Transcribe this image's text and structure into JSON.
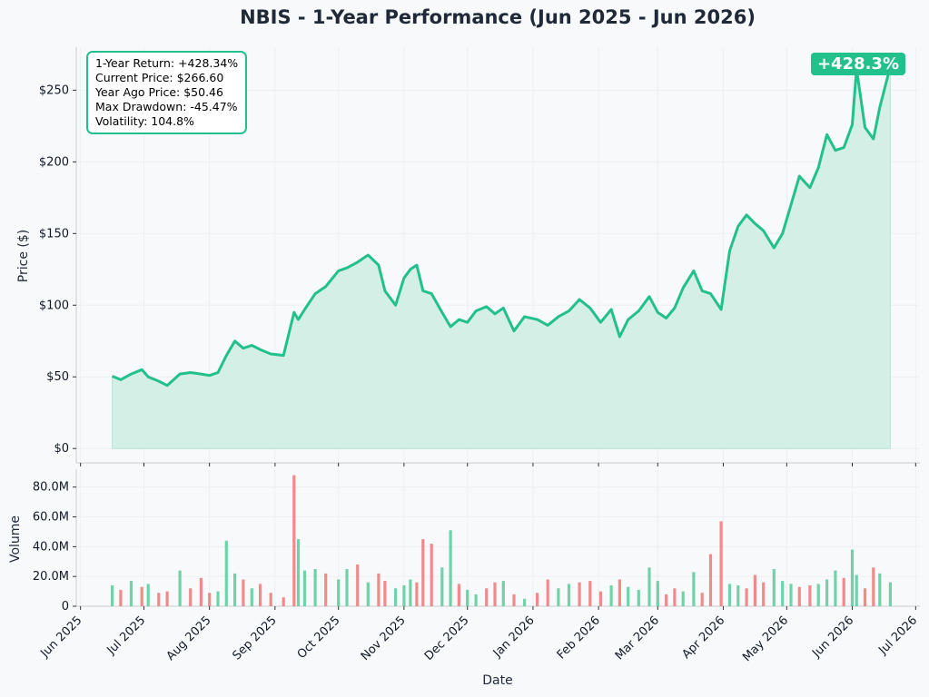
{
  "colors": {
    "accent": "#22c08a",
    "fill": "#d4efe5",
    "volume_up": "#5fcea0",
    "volume_down": "#ef7e7e",
    "grid": "#eceff3",
    "axis": "#c9ccd1"
  },
  "stats": {
    "return_line": "1-Year Return: +428.34%",
    "current_line": "Current Price: $266.60",
    "yearago_line": "Year Ago Price: $50.46",
    "drawdown_line": "Max Drawdown: -45.47%",
    "volatility_line": "Volatility: 104.8%"
  },
  "badge": "+428.3%",
  "chart_data": [
    {
      "type": "area",
      "title": "NBIS - 1-Year Performance (Jun 2025 - Jun 2026)",
      "xlabel": "",
      "ylabel": "Price ($)",
      "xlim": [
        "2025-05-30",
        "2026-07-03"
      ],
      "ylim": [
        -10,
        280
      ],
      "yticks": [
        0,
        50,
        100,
        150,
        200,
        250
      ],
      "ytick_labels": [
        "$0",
        "$50",
        "$100",
        "$150",
        "$200",
        "$250"
      ],
      "grid": true,
      "series": [
        {
          "x": [
            "2025-06-16",
            "2025-06-20",
            "2025-06-25",
            "2025-06-30",
            "2025-07-03",
            "2025-07-08",
            "2025-07-12",
            "2025-07-18",
            "2025-07-23",
            "2025-07-28",
            "2025-08-01",
            "2025-08-05",
            "2025-08-09",
            "2025-08-13",
            "2025-08-17",
            "2025-08-21",
            "2025-08-25",
            "2025-08-30",
            "2025-09-05",
            "2025-09-10",
            "2025-09-12",
            "2025-09-15",
            "2025-09-20",
            "2025-09-25",
            "2025-10-01",
            "2025-10-05",
            "2025-10-10",
            "2025-10-15",
            "2025-10-20",
            "2025-10-23",
            "2025-10-28",
            "2025-11-01",
            "2025-11-04",
            "2025-11-07",
            "2025-11-10",
            "2025-11-14",
            "2025-11-19",
            "2025-11-23",
            "2025-11-27",
            "2025-12-01",
            "2025-12-05",
            "2025-12-10",
            "2025-12-14",
            "2025-12-18",
            "2025-12-23",
            "2025-12-28",
            "2026-01-03",
            "2026-01-08",
            "2026-01-13",
            "2026-01-18",
            "2026-01-23",
            "2026-01-28",
            "2026-02-02",
            "2026-02-07",
            "2026-02-11",
            "2026-02-15",
            "2026-02-20",
            "2026-02-25",
            "2026-03-01",
            "2026-03-05",
            "2026-03-09",
            "2026-03-13",
            "2026-03-18",
            "2026-03-22",
            "2026-03-26",
            "2026-03-31",
            "2026-04-04",
            "2026-04-08",
            "2026-04-12",
            "2026-04-16",
            "2026-04-20",
            "2026-04-25",
            "2026-04-29",
            "2026-05-03",
            "2026-05-07",
            "2026-05-12",
            "2026-05-16",
            "2026-05-20",
            "2026-05-24",
            "2026-05-28",
            "2026-06-01",
            "2026-06-03",
            "2026-06-07",
            "2026-06-11",
            "2026-06-14",
            "2026-06-19"
          ],
          "values": [
            50.5,
            48,
            52,
            55,
            50,
            47,
            44,
            52,
            53,
            52,
            51,
            53,
            65,
            75,
            70,
            72,
            69,
            66,
            65,
            95,
            90,
            97,
            108,
            113,
            124,
            126,
            130,
            135,
            128,
            110,
            100,
            119,
            125,
            128,
            110,
            108,
            95,
            85,
            90,
            88,
            96,
            99,
            94,
            98,
            82,
            92,
            90,
            86,
            92,
            96,
            104,
            98,
            88,
            97,
            78,
            90,
            96,
            106,
            95,
            91,
            98,
            112,
            124,
            110,
            108,
            97,
            138,
            155,
            163,
            157,
            152,
            140,
            150,
            170,
            190,
            182,
            196,
            219,
            208,
            210,
            226,
            265,
            224,
            216,
            238,
            266.6
          ]
        }
      ]
    },
    {
      "type": "bar",
      "title": "",
      "xlabel": "Date",
      "ylabel": "Volume",
      "ylim": [
        0,
        92
      ],
      "yticks": [
        0,
        20,
        40,
        60,
        80
      ],
      "ytick_labels": [
        "0",
        "20.0M",
        "40.0M",
        "60.0M",
        "80.0M"
      ],
      "xticks": [
        "2025-06-01",
        "2025-07-01",
        "2025-08-01",
        "2025-09-01",
        "2025-10-01",
        "2025-11-01",
        "2025-12-01",
        "2026-01-01",
        "2026-02-01",
        "2026-03-01",
        "2026-04-01",
        "2026-05-01",
        "2026-06-01",
        "2026-07-01"
      ],
      "xtick_labels": [
        "Jun 2025",
        "Jul 2025",
        "Aug 2025",
        "Sep 2025",
        "Oct 2025",
        "Nov 2025",
        "Dec 2025",
        "Jan 2026",
        "Feb 2026",
        "Mar 2026",
        "Apr 2026",
        "May 2026",
        "Jun 2026",
        "Jul 2026"
      ],
      "series": [
        {
          "name": "",
          "x": [
            "2025-06-16",
            "2025-06-20",
            "2025-06-25",
            "2025-06-30",
            "2025-07-03",
            "2025-07-08",
            "2025-07-12",
            "2025-07-18",
            "2025-07-23",
            "2025-07-28",
            "2025-08-01",
            "2025-08-05",
            "2025-08-09",
            "2025-08-13",
            "2025-08-17",
            "2025-08-21",
            "2025-08-25",
            "2025-08-30",
            "2025-09-05",
            "2025-09-10",
            "2025-09-12",
            "2025-09-15",
            "2025-09-20",
            "2025-09-25",
            "2025-10-01",
            "2025-10-05",
            "2025-10-10",
            "2025-10-15",
            "2025-10-20",
            "2025-10-23",
            "2025-10-28",
            "2025-11-01",
            "2025-11-04",
            "2025-11-07",
            "2025-11-10",
            "2025-11-14",
            "2025-11-19",
            "2025-11-23",
            "2025-11-27",
            "2025-12-01",
            "2025-12-05",
            "2025-12-10",
            "2025-12-14",
            "2025-12-18",
            "2025-12-23",
            "2025-12-28",
            "2026-01-03",
            "2026-01-08",
            "2026-01-13",
            "2026-01-18",
            "2026-01-23",
            "2026-01-28",
            "2026-02-02",
            "2026-02-07",
            "2026-02-11",
            "2026-02-15",
            "2026-02-20",
            "2026-02-25",
            "2026-03-01",
            "2026-03-05",
            "2026-03-09",
            "2026-03-13",
            "2026-03-18",
            "2026-03-22",
            "2026-03-26",
            "2026-03-31",
            "2026-04-04",
            "2026-04-08",
            "2026-04-12",
            "2026-04-16",
            "2026-04-20",
            "2026-04-25",
            "2026-04-29",
            "2026-05-03",
            "2026-05-07",
            "2026-05-12",
            "2026-05-16",
            "2026-05-20",
            "2026-05-24",
            "2026-05-28",
            "2026-06-01",
            "2026-06-03",
            "2026-06-07",
            "2026-06-11",
            "2026-06-14",
            "2026-06-19"
          ],
          "values": [
            14,
            11,
            17,
            13,
            15,
            9,
            10,
            24,
            12,
            19,
            9,
            10,
            44,
            22,
            18,
            12,
            15,
            9,
            6,
            88,
            45,
            24,
            25,
            22,
            18,
            25,
            28,
            16,
            22,
            17,
            12,
            14,
            18,
            16,
            45,
            42,
            26,
            51,
            15,
            11,
            8,
            12,
            16,
            17,
            8,
            5,
            9,
            18,
            12,
            15,
            16,
            17,
            10,
            14,
            18,
            13,
            11,
            26,
            17,
            8,
            12,
            10,
            23,
            9,
            35,
            57,
            15,
            14,
            12,
            21,
            16,
            25,
            17,
            15,
            13,
            14,
            15,
            18,
            24,
            19,
            38,
            21,
            12,
            26,
            22,
            16
          ],
          "direction": [
            "up",
            "down",
            "up",
            "down",
            "up",
            "down",
            "down",
            "up",
            "down",
            "down",
            "down",
            "up",
            "up",
            "up",
            "down",
            "up",
            "down",
            "down",
            "down",
            "down",
            "up",
            "up",
            "up",
            "down",
            "up",
            "up",
            "down",
            "up",
            "down",
            "down",
            "up",
            "up",
            "up",
            "down",
            "down",
            "down",
            "up",
            "up",
            "down",
            "up",
            "up",
            "down",
            "down",
            "up",
            "down",
            "up",
            "down",
            "down",
            "up",
            "up",
            "down",
            "down",
            "down",
            "up",
            "down",
            "up",
            "up",
            "up",
            "up",
            "down",
            "down",
            "up",
            "up",
            "down",
            "down",
            "down",
            "up",
            "up",
            "down",
            "down",
            "down",
            "up",
            "up",
            "up",
            "down",
            "down",
            "up",
            "up",
            "up",
            "down",
            "up",
            "up",
            "down",
            "down",
            "up",
            "up"
          ]
        }
      ]
    }
  ]
}
